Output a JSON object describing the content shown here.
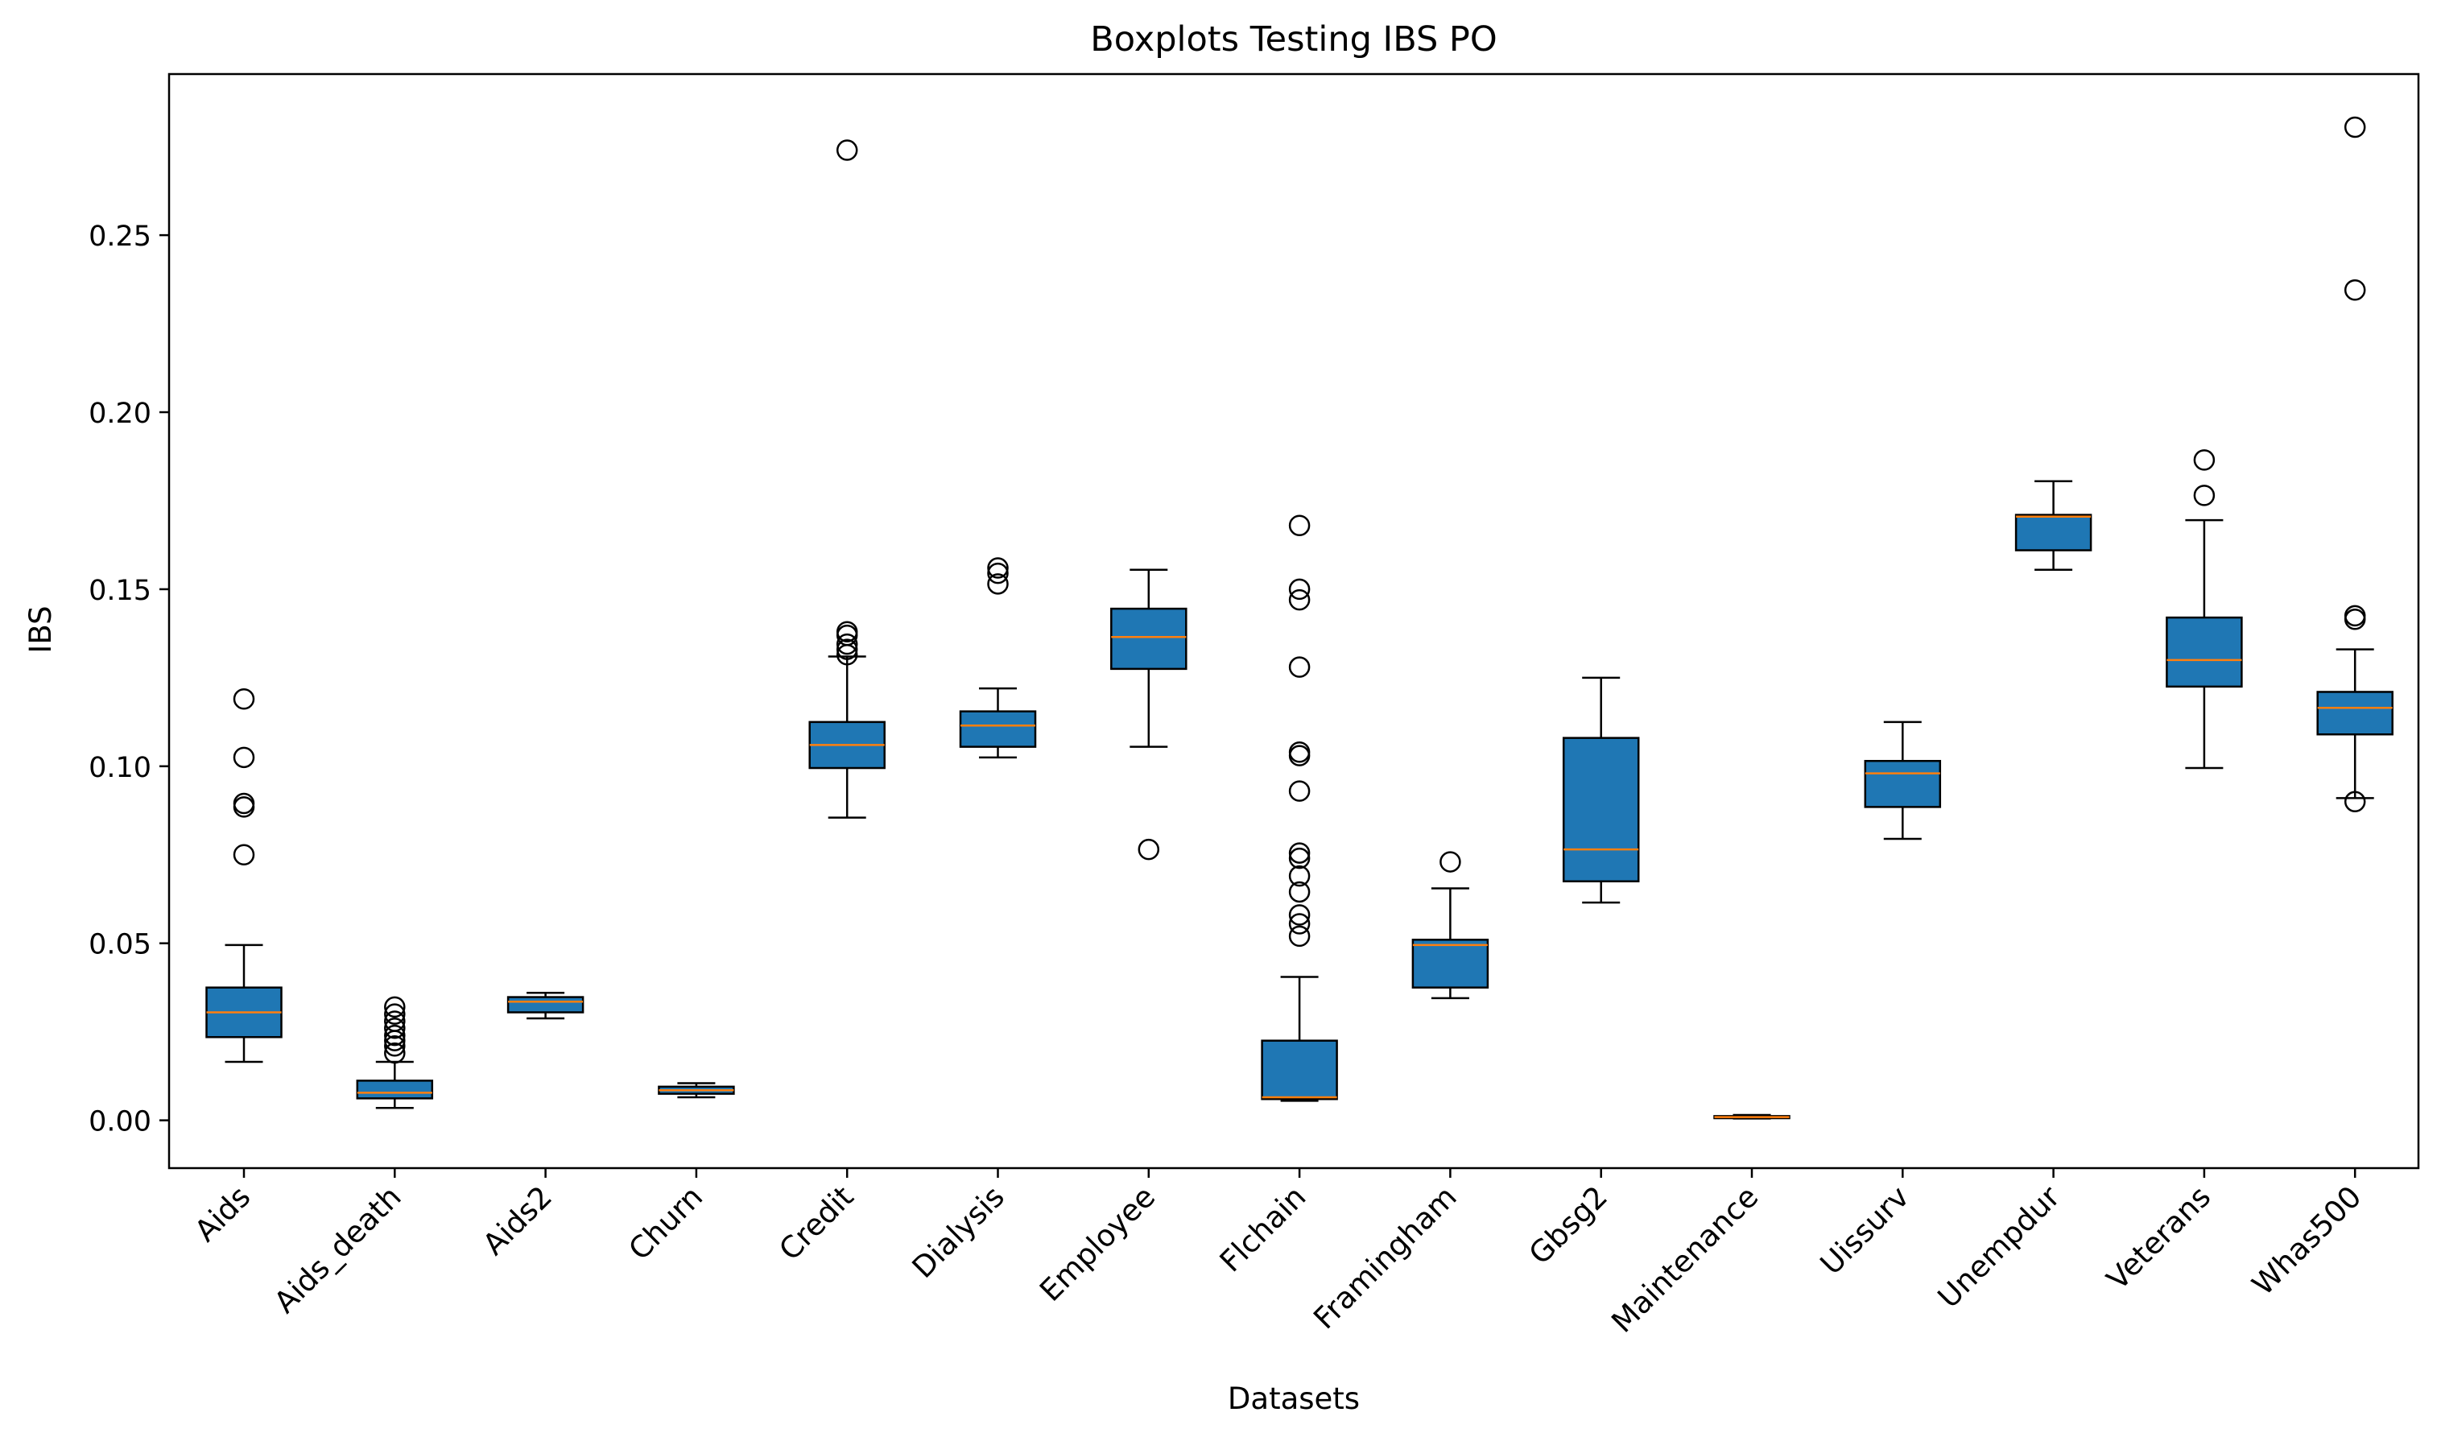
{
  "chart_data": {
    "type": "boxplot",
    "title": "Boxplots Testing IBS PO",
    "xlabel": "Datasets",
    "ylabel": "IBS",
    "ylim": [
      -0.0135,
      0.2955
    ],
    "yticks": [
      0.0,
      0.05,
      0.1,
      0.15,
      0.2,
      0.25
    ],
    "ytick_labels": [
      "0.00",
      "0.05",
      "0.10",
      "0.15",
      "0.20",
      "0.25"
    ],
    "grid": false,
    "colors": {
      "box_fill": "#1f77b4",
      "median": "#ff7f0e",
      "edge": "#000000"
    },
    "datasets": [
      {
        "name": "Aids",
        "whislo": 0.0165,
        "q1": 0.0235,
        "median": 0.0305,
        "q3": 0.0375,
        "whishi": 0.0495,
        "fliers": [
          0.075,
          0.0885,
          0.0895,
          0.1025,
          0.119
        ]
      },
      {
        "name": "Aids_death",
        "whislo": 0.0035,
        "q1": 0.0062,
        "median": 0.0078,
        "q3": 0.0112,
        "whishi": 0.0165,
        "fliers": [
          0.019,
          0.021,
          0.0225,
          0.024,
          0.026,
          0.028,
          0.03,
          0.032
        ]
      },
      {
        "name": "Aids2",
        "whislo": 0.0288,
        "q1": 0.0305,
        "median": 0.0335,
        "q3": 0.0348,
        "whishi": 0.036,
        "fliers": []
      },
      {
        "name": "Churn",
        "whislo": 0.0065,
        "q1": 0.0075,
        "median": 0.0085,
        "q3": 0.0095,
        "whishi": 0.0105,
        "fliers": []
      },
      {
        "name": "Credit",
        "whislo": 0.0855,
        "q1": 0.0995,
        "median": 0.106,
        "q3": 0.1125,
        "whishi": 0.131,
        "fliers": [
          0.1315,
          0.133,
          0.1345,
          0.137,
          0.138,
          0.274
        ]
      },
      {
        "name": "Dialysis",
        "whislo": 0.1025,
        "q1": 0.1055,
        "median": 0.1115,
        "q3": 0.1155,
        "whishi": 0.122,
        "fliers": [
          0.1515,
          0.1545,
          0.156
        ]
      },
      {
        "name": "Employee",
        "whislo": 0.1055,
        "q1": 0.1275,
        "median": 0.1365,
        "q3": 0.1445,
        "whishi": 0.1555,
        "fliers": [
          0.0765
        ]
      },
      {
        "name": "Flchain",
        "whislo": 0.0055,
        "q1": 0.006,
        "median": 0.0065,
        "q3": 0.0225,
        "whishi": 0.0405,
        "fliers": [
          0.052,
          0.0555,
          0.058,
          0.0645,
          0.069,
          0.074,
          0.0755,
          0.093,
          0.103,
          0.104,
          0.128,
          0.147,
          0.15,
          0.168
        ]
      },
      {
        "name": "Framingham",
        "whislo": 0.0345,
        "q1": 0.0375,
        "median": 0.0495,
        "q3": 0.051,
        "whishi": 0.0655,
        "fliers": [
          0.073
        ]
      },
      {
        "name": "Gbsg2",
        "whislo": 0.0615,
        "q1": 0.0675,
        "median": 0.0765,
        "q3": 0.108,
        "whishi": 0.125,
        "fliers": []
      },
      {
        "name": "Maintenance",
        "whislo": 0.0005,
        "q1": 0.0006,
        "median": 0.0009,
        "q3": 0.0012,
        "whishi": 0.0015,
        "fliers": []
      },
      {
        "name": "Uissurv",
        "whislo": 0.0795,
        "q1": 0.0885,
        "median": 0.098,
        "q3": 0.1015,
        "whishi": 0.1125,
        "fliers": []
      },
      {
        "name": "Unempdur",
        "whislo": 0.1555,
        "q1": 0.161,
        "median": 0.1705,
        "q3": 0.171,
        "whishi": 0.1805,
        "fliers": []
      },
      {
        "name": "Veterans",
        "whislo": 0.0995,
        "q1": 0.1225,
        "median": 0.13,
        "q3": 0.142,
        "whishi": 0.1695,
        "fliers": [
          0.1765,
          0.1865
        ]
      },
      {
        "name": "Whas500",
        "whislo": 0.091,
        "q1": 0.109,
        "median": 0.1165,
        "q3": 0.121,
        "whishi": 0.133,
        "fliers": [
          0.09,
          0.1415,
          0.1425,
          0.2345,
          0.2805
        ]
      }
    ]
  }
}
